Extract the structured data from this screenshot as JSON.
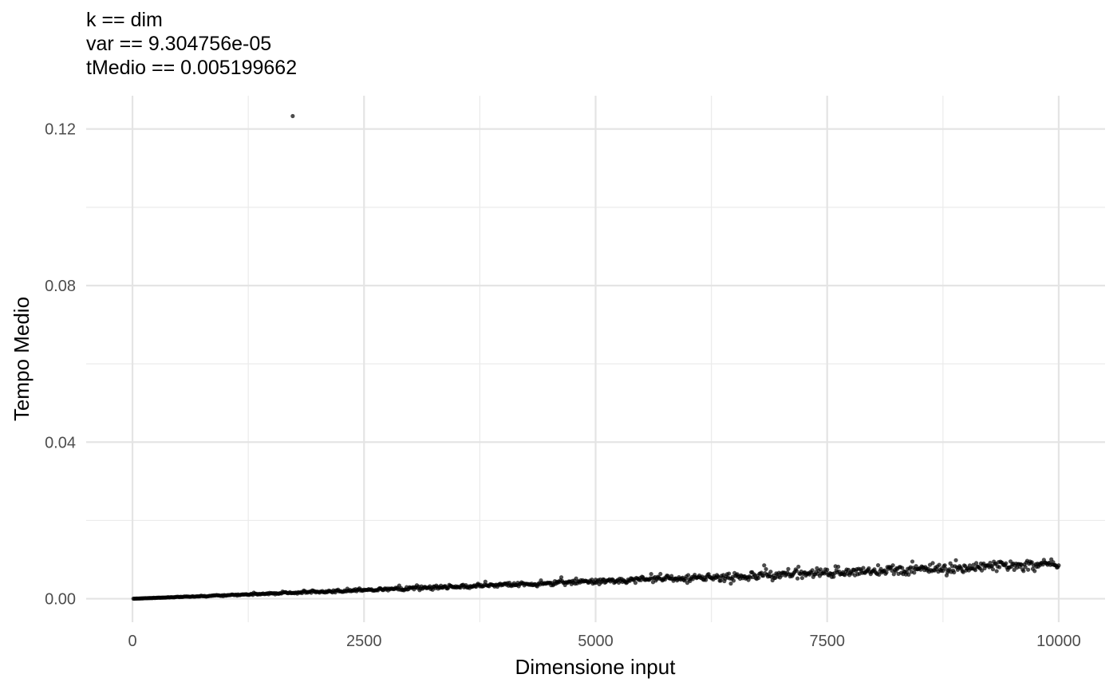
{
  "chart_data": {
    "type": "scatter",
    "title_lines": [
      "k == dim",
      "var == 9.304756e-05",
      "tMedio == 0.005199662"
    ],
    "xlabel": "Dimensione input",
    "ylabel": "Tempo Medio",
    "xlim": [
      -500,
      10500
    ],
    "ylim": [
      -0.006,
      0.1285
    ],
    "x_ticks": [
      0,
      2500,
      5000,
      7500,
      10000
    ],
    "x_tick_labels": [
      "0",
      "2500",
      "5000",
      "7500",
      "10000"
    ],
    "x_minor_ticks": [
      1250,
      3750,
      6250,
      8750
    ],
    "y_ticks": [
      0,
      0.04,
      0.08,
      0.12
    ],
    "y_tick_labels": [
      "0.00",
      "0.04",
      "0.08",
      "0.12"
    ],
    "y_minor_ticks": [
      0.02,
      0.06,
      0.1
    ],
    "grid": true,
    "legend": "none",
    "point_color": "#000000",
    "point_opacity": 0.7,
    "points": {
      "n": 1000,
      "x_start": 10,
      "x_step": 10,
      "trend_slope_per_unit_x": 8.8e-07,
      "noise_sd_coefficient": 0.085
    },
    "outliers": [
      {
        "x": 1730,
        "y": 0.1233
      }
    ]
  }
}
